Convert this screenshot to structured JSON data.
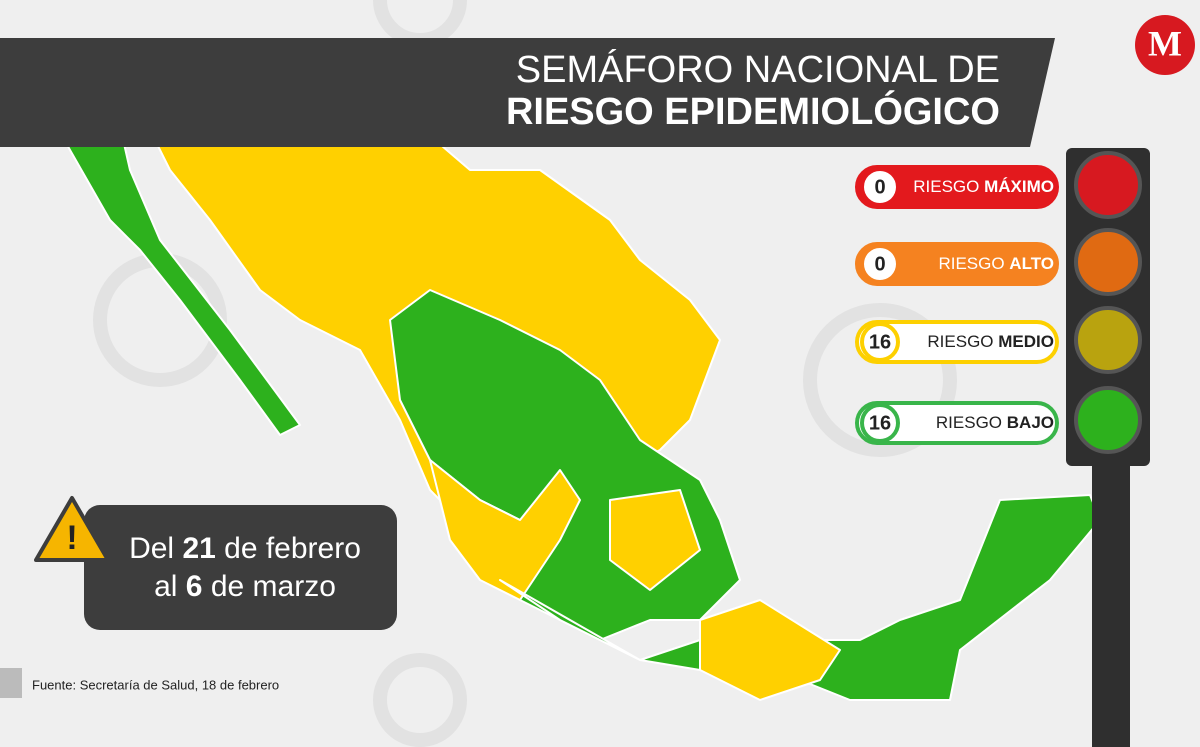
{
  "header": {
    "title_line1": "SEMÁFORO NACIONAL DE",
    "title_line2": "RIESGO EPIDEMIOLÓGICO",
    "logo": "M"
  },
  "legend": [
    {
      "count": "0",
      "prefix": "RIESGO ",
      "level": "MÁXIMO"
    },
    {
      "count": "0",
      "prefix": "RIESGO ",
      "level": "ALTO"
    },
    {
      "count": "16",
      "prefix": "RIESGO ",
      "level": "MEDIO"
    },
    {
      "count": "16",
      "prefix": "RIESGO ",
      "level": "BAJO"
    }
  ],
  "period": {
    "line1_a": "Del ",
    "line1_b": "21",
    "line1_c": " de febrero",
    "line2_a": "al ",
    "line2_b": "6",
    "line2_c": " de marzo"
  },
  "source": "Fuente: Secretaría de Salud, 18 de febrero"
}
